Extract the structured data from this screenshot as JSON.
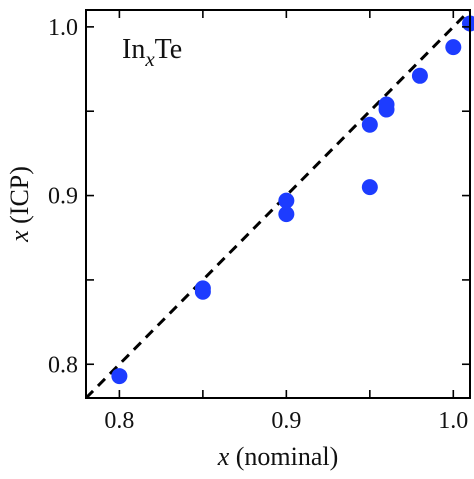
{
  "chart_data": {
    "type": "scatter",
    "title": "",
    "annotation": {
      "base": "In",
      "subscript": "x",
      "suffix": "Te"
    },
    "xlabel": {
      "italic": "x",
      "rest": " (nominal)"
    },
    "ylabel": {
      "italic": "x",
      "rest": " (ICP)"
    },
    "xlim": [
      0.78,
      1.01
    ],
    "ylim": [
      0.78,
      1.01
    ],
    "xticks": [
      0.8,
      0.85,
      0.9,
      0.95,
      1.0
    ],
    "yticks": [
      0.8,
      0.85,
      0.9,
      0.95,
      1.0
    ],
    "xtick_labels": [
      "0.8",
      "",
      "0.9",
      "",
      "1.0"
    ],
    "ytick_labels": [
      "0.8",
      "",
      "0.9",
      "",
      "1.0"
    ],
    "reference_line": {
      "style": "dashed",
      "color": "#000000",
      "points": [
        [
          0.78,
          0.78
        ],
        [
          1.01,
          1.01
        ]
      ]
    },
    "series": [
      {
        "marker_color": "#1d3cff",
        "points": [
          [
            0.8,
            0.793
          ],
          [
            0.85,
            0.843
          ],
          [
            0.85,
            0.845
          ],
          [
            0.9,
            0.897
          ],
          [
            0.9,
            0.889
          ],
          [
            0.95,
            0.942
          ],
          [
            0.95,
            0.905
          ],
          [
            0.96,
            0.951
          ],
          [
            0.96,
            0.954
          ],
          [
            0.98,
            0.971
          ],
          [
            1.0,
            0.988
          ],
          [
            1.01,
            1.002
          ]
        ]
      }
    ],
    "grid": false,
    "legend": "none"
  }
}
